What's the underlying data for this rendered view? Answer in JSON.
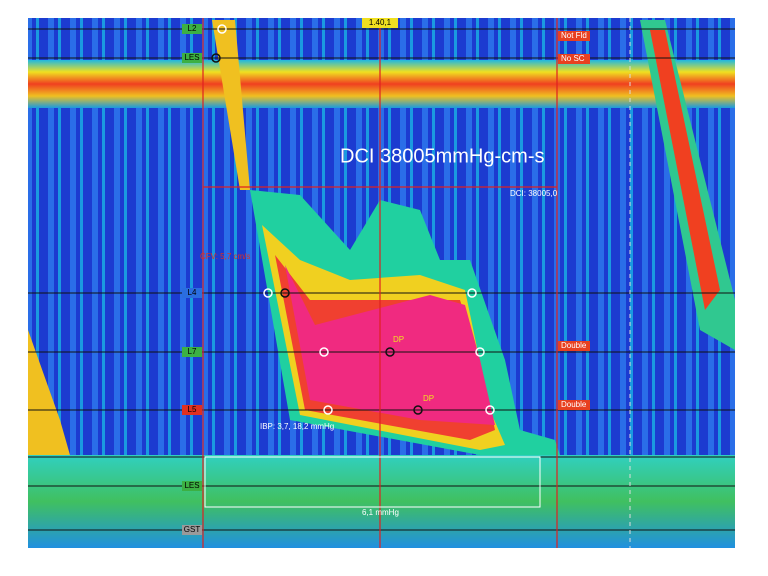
{
  "header": {
    "time": "1.40,1"
  },
  "flags": [
    "Not Fld",
    "No SC"
  ],
  "dci_annotation": "DCI 38005mmHg-cm-s",
  "dci_label": "DCI: 38005,0",
  "cfv_label": "CFV: 5,7 cm/s",
  "markers": [
    "Double",
    "Double"
  ],
  "ibp_label": "IBP: 3,7, 18,2 mmHg",
  "pressure_label": "6,1 mmHg",
  "dp_labels": [
    "DP",
    "DP"
  ],
  "sensors": [
    {
      "label": "L2",
      "color": "#3cb043"
    },
    {
      "label": "LES",
      "color": "#3cb043"
    },
    {
      "label": "L4",
      "color": "#2a6de0"
    },
    {
      "label": "L7",
      "color": "#3cb043"
    },
    {
      "label": "L5",
      "color": "#e03020"
    },
    {
      "label": "LES",
      "color": "#3cb043"
    },
    {
      "label": "GST",
      "color": "#9a9a9a"
    }
  ]
}
